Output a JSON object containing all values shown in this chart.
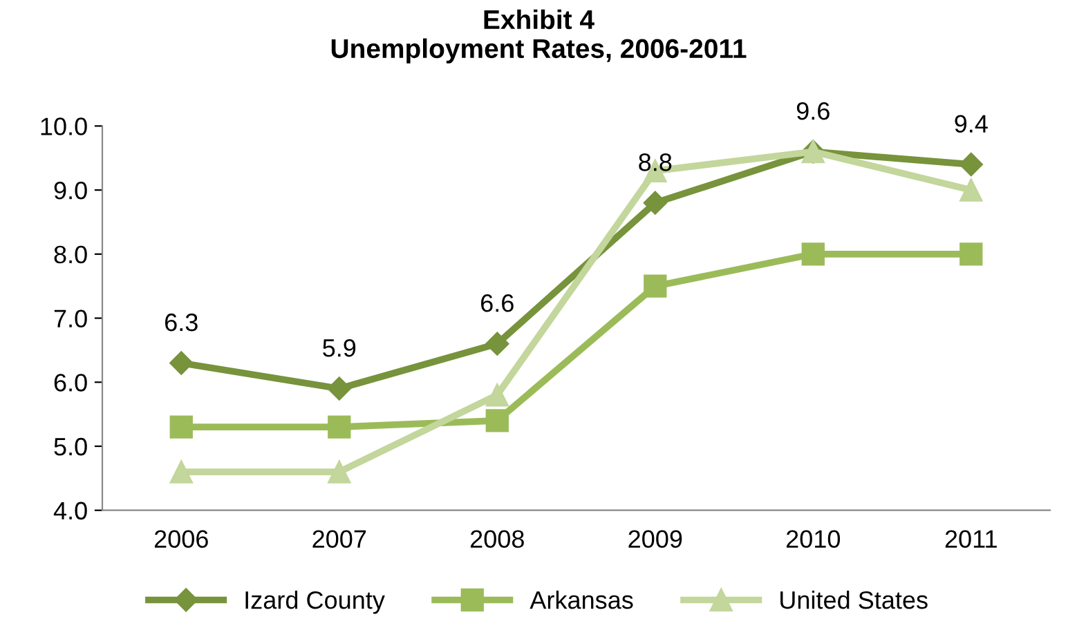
{
  "chart_data": {
    "type": "line",
    "title": "Exhibit 4\nUnemployment Rates, 2006-2011",
    "categories": [
      "2006",
      "2007",
      "2008",
      "2009",
      "2010",
      "2011"
    ],
    "series": [
      {
        "name": "Izard County",
        "color": "#77933c",
        "marker": "diamond",
        "values": [
          6.3,
          5.9,
          6.6,
          8.8,
          9.6,
          9.4
        ],
        "value_labels": [
          "6.3",
          "5.9",
          "6.6",
          "8.8",
          "9.6",
          "9.4"
        ]
      },
      {
        "name": "Arkansas",
        "color": "#9bbb59",
        "marker": "square",
        "values": [
          5.3,
          5.3,
          5.4,
          7.5,
          8.0,
          8.0
        ]
      },
      {
        "name": "United States",
        "color": "#c3d69b",
        "marker": "triangle",
        "values": [
          4.6,
          4.6,
          5.8,
          9.3,
          9.6,
          9.0
        ]
      }
    ],
    "ylim": [
      4.0,
      10.0
    ],
    "yticks": [
      {
        "value": 4,
        "label": "4.0"
      },
      {
        "value": 5,
        "label": "5.0"
      },
      {
        "value": 6,
        "label": "6.0"
      },
      {
        "value": 7,
        "label": "7.0"
      },
      {
        "value": 8,
        "label": "8.0"
      },
      {
        "value": 9,
        "label": "9.0"
      },
      {
        "value": 10,
        "label": "10.0"
      }
    ],
    "grid": false,
    "legend": "bottom"
  }
}
